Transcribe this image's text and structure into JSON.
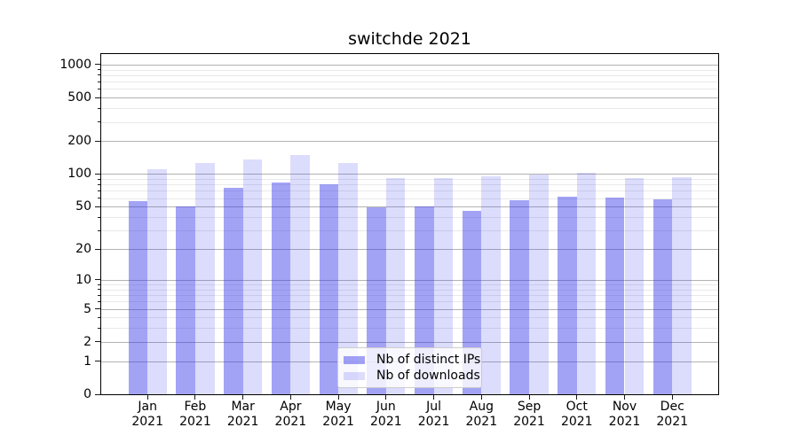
{
  "chart_data": {
    "type": "bar",
    "title": "switchde 2021",
    "categories": [
      "Jan",
      "Feb",
      "Mar",
      "Apr",
      "May",
      "Jun",
      "Jul",
      "Aug",
      "Sep",
      "Oct",
      "Nov",
      "Dec"
    ],
    "category_year_label": "2021",
    "series": [
      {
        "name": "Nb of distinct IPs",
        "color": "rgba(50,50,235,0.45)",
        "values": [
          57,
          51,
          76,
          85,
          82,
          50,
          51,
          47,
          58,
          63,
          62,
          60
        ]
      },
      {
        "name": "Nb of downloads",
        "color": "rgba(50,50,235,0.17)",
        "values": [
          112,
          128,
          139,
          152,
          129,
          93,
          94,
          98,
          100,
          105,
          94,
          95
        ]
      }
    ],
    "y_axis": {
      "scale": "log10(1+v)",
      "major_ticks": [
        0,
        1,
        2,
        5,
        10,
        20,
        50,
        100,
        200,
        500,
        1000
      ],
      "minor_ticks": [
        3,
        4,
        6,
        7,
        8,
        9,
        30,
        40,
        60,
        70,
        80,
        90,
        300,
        400,
        600,
        700,
        800,
        900
      ],
      "range": [
        0,
        1250
      ]
    },
    "grid": {
      "orientation": "horizontal",
      "major_color": "#b3b3b3",
      "minor_color": "#e9e9e9"
    },
    "legend": {
      "position": "bottom-center",
      "entries": [
        "Nb of distinct IPs",
        "Nb of downloads"
      ]
    }
  }
}
